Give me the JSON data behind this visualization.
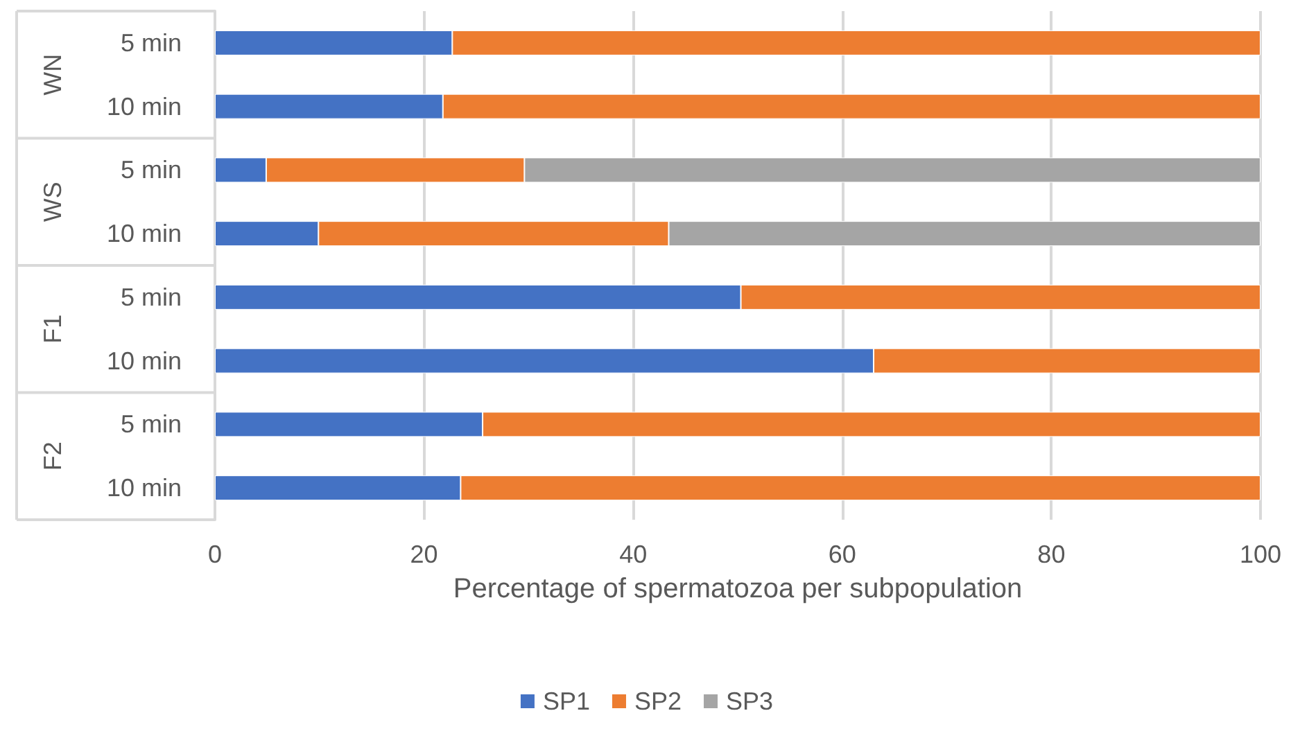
{
  "chart_data": {
    "type": "bar",
    "orientation": "horizontal",
    "stacked": true,
    "categories": [
      "5 min",
      "10 min",
      "5 min",
      "10 min",
      "5 min",
      "10 min",
      "5 min",
      "10 min"
    ],
    "annotations": [
      "WN",
      "WS",
      "F1",
      "F2"
    ],
    "series": [
      {
        "name": "SP1",
        "color": "#4472c4",
        "values": [
          22.7,
          21.8,
          4.9,
          9.9,
          50.3,
          63.0,
          25.6,
          23.5
        ]
      },
      {
        "name": "SP2",
        "color": "#ed7d31",
        "values": [
          77.3,
          78.2,
          24.7,
          33.5,
          49.7,
          37.0,
          74.4,
          76.5
        ]
      },
      {
        "name": "SP3",
        "color": "#a5a5a5",
        "values": [
          null,
          null,
          70.4,
          56.6,
          null,
          null,
          null,
          null
        ]
      }
    ],
    "xlabel": "Percentage of spermatozoa per subpopulation",
    "xlim": [
      0,
      100
    ],
    "xticks": [
      0,
      20,
      40,
      60,
      80,
      100
    ],
    "grid": "x",
    "legend": "bottom"
  }
}
